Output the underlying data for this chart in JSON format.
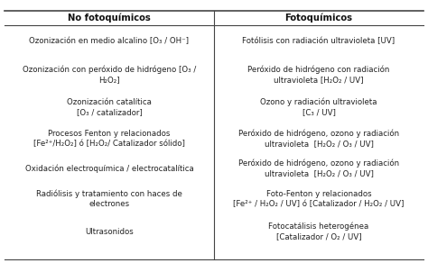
{
  "col1_header": "No fotoquímicos",
  "col2_header": "Fotoquímicos",
  "col1_items": [
    "Ozonización en medio alcalino [O₃ / OH⁻]",
    "Ozonización con peróxido de hidrógeno [O₃ /\nH₂O₂]",
    "Ozonización catalítica\n[O₃ / catalizador]",
    "Procesos Fenton y relacionados\n[Fe²⁺/H₂O₂] ó [H₂O₂/ Catalizador sólido]",
    "Oxidación electroquímica / electrocatalítica",
    "Radiólisis y tratamiento con haces de\nelectrones",
    "Ultrasonidos"
  ],
  "col2_items": [
    "Fotólisis con radiación ultravioleta [UV]",
    "Peróxido de hidrógeno con radiación\nultravioleta [H₂O₂ / UV]",
    "Ozono y radiación ultravioleta\n[C₃ / UV]",
    "Peróxido de hidrógeno, ozono y radiación\nultravioleta  [H₂O₂ / O₃ / UV]",
    "Peróxido de hidrógeno, ozono y radiación\nultravioleta  [H₂O₂ / O₃ / UV]",
    "Foto-Fenton y relacionados\n[Fe²⁺ / H₂O₂ / UV] ó [Catalizador / H₂O₂ / UV]",
    "Fotocatálisis heterogénea\n[Catalizador / O₂ / UV]"
  ],
  "bg_color": "#ffffff",
  "text_color": "#222222",
  "header_color": "#111111",
  "line_color": "#444444",
  "font_size": 6.2,
  "header_font_size": 7.2
}
